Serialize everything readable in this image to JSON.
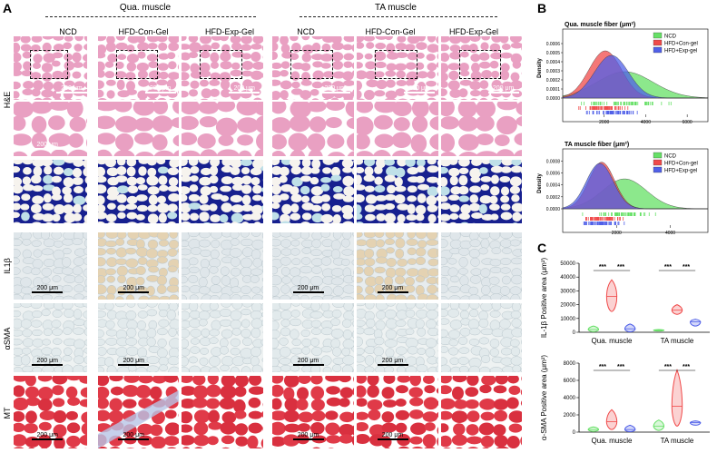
{
  "panel_labels": {
    "a": "A",
    "b": "B",
    "c": "C"
  },
  "groups": {
    "qua": "Qua. muscle",
    "ta": "TA muscle"
  },
  "columns": [
    "NCD",
    "HFD-Con-Gel",
    "HFD-Exp-Gel"
  ],
  "rows": [
    "H&E",
    "IL1β",
    "αSMA",
    "MT"
  ],
  "scalebar": "200 μm",
  "colors": {
    "ncd": "#66e066",
    "con": "#f04a4a",
    "exp": "#5060e8",
    "he": "#e9a0c2",
    "mt": "#e2414f",
    "ihc": "#e7ecee",
    "luxol": "#17208f"
  },
  "chart_data": [
    {
      "type": "area",
      "title": "Qua. muscle fiber (μm²)",
      "ylabel": "Density",
      "xticks": [
        "2000",
        "4000",
        "6000"
      ],
      "yticks": [
        "0.0000",
        "0.0001",
        "0.0002",
        "0.0003",
        "0.0004",
        "0.0005",
        "0.0006"
      ],
      "xlim": [
        0,
        7000
      ],
      "ylim": [
        0,
        0.00066
      ],
      "legend_position": "top-right",
      "series": [
        {
          "name": "NCD",
          "mean": 3000,
          "sd": 1350,
          "peak": 0.00029
        },
        {
          "name": "HFD+Con-gel",
          "mean": 2050,
          "sd": 780,
          "peak": 0.00052
        },
        {
          "name": "HFD+Exp-gel",
          "mean": 2350,
          "sd": 820,
          "peak": 0.00047
        }
      ]
    },
    {
      "type": "area",
      "title": "TA muscle fiber (μm²)",
      "ylabel": "Density",
      "xticks": [
        "2000",
        "4000"
      ],
      "yticks": [
        "0.0000",
        "0.0002",
        "0.0004",
        "0.0006",
        "0.0008"
      ],
      "xlim": [
        0,
        5400
      ],
      "ylim": [
        0,
        0.00085
      ],
      "legend_position": "top-right",
      "series": [
        {
          "name": "NCD",
          "mean": 2300,
          "sd": 820,
          "peak": 0.0005
        },
        {
          "name": "HFD+Con-gel",
          "mean": 1450,
          "sd": 480,
          "peak": 0.00078
        },
        {
          "name": "HFD+Exp-gel",
          "mean": 1380,
          "sd": 500,
          "peak": 0.00076
        }
      ]
    },
    {
      "type": "violin",
      "ylabel": "IL-1β Positive area (μm²)",
      "yticks": [
        "0",
        "10000",
        "20000",
        "30000",
        "40000",
        "50000"
      ],
      "ylim": [
        0,
        50000
      ],
      "categories": [
        "Qua. muscle",
        "TA muscle"
      ],
      "significance": [
        "***",
        "***",
        "***",
        "***"
      ],
      "groups": [
        {
          "category": "Qua. muscle",
          "name": "NCD",
          "median": 2000,
          "min": 400,
          "max": 4500
        },
        {
          "category": "Qua. muscle",
          "name": "HFD+Con-gel",
          "median": 26000,
          "min": 15000,
          "max": 38000
        },
        {
          "category": "Qua. muscle",
          "name": "HFD+Exp-gel",
          "median": 2500,
          "min": 300,
          "max": 6000
        },
        {
          "category": "TA muscle",
          "name": "NCD",
          "median": 1500,
          "min": 900,
          "max": 2000
        },
        {
          "category": "TA muscle",
          "name": "HFD+Con-gel",
          "median": 16000,
          "min": 13000,
          "max": 20000
        },
        {
          "category": "TA muscle",
          "name": "HFD+Exp-gel",
          "median": 7500,
          "min": 4500,
          "max": 9500
        }
      ]
    },
    {
      "type": "violin",
      "ylabel": "α-SMA Positive area (μm²)",
      "yticks": [
        "0",
        "2000",
        "4000",
        "6000",
        "8000"
      ],
      "ylim": [
        0,
        8000
      ],
      "categories": [
        "Qua. muscle",
        "TA muscle"
      ],
      "significance": [
        "***",
        "***",
        "***",
        "***"
      ],
      "groups": [
        {
          "category": "Qua. muscle",
          "name": "NCD",
          "median": 300,
          "min": 80,
          "max": 600
        },
        {
          "category": "Qua. muscle",
          "name": "HFD+Con-gel",
          "median": 1200,
          "min": 300,
          "max": 2600
        },
        {
          "category": "Qua. muscle",
          "name": "HFD+Exp-gel",
          "median": 300,
          "min": 50,
          "max": 800
        },
        {
          "category": "TA muscle",
          "name": "NCD",
          "median": 700,
          "min": 200,
          "max": 1400
        },
        {
          "category": "TA muscle",
          "name": "HFD+Con-gel",
          "median": 3000,
          "min": 700,
          "max": 7200
        },
        {
          "category": "TA muscle",
          "name": "HFD+Exp-gel",
          "median": 1100,
          "min": 800,
          "max": 1300
        }
      ]
    }
  ]
}
